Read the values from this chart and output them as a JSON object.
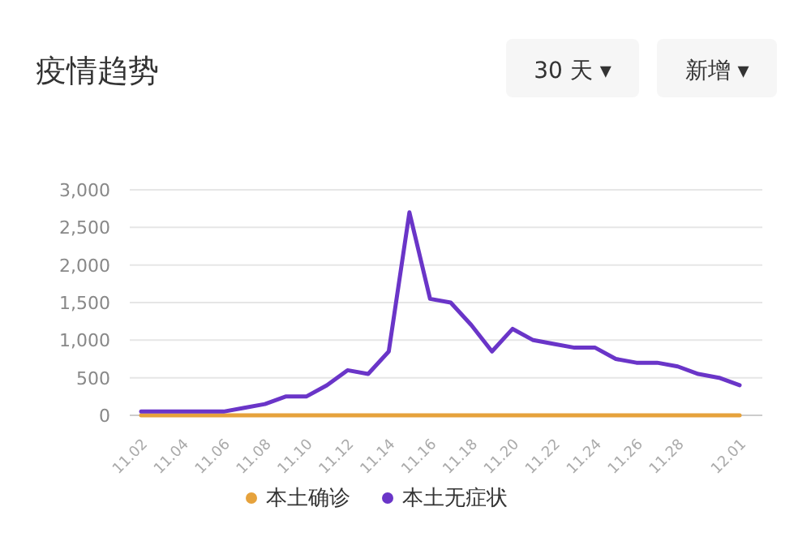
{
  "chart_data": {
    "type": "line",
    "title": "疫情趋势",
    "annotations": [
      "30 天 ▾",
      "新增 ▾"
    ],
    "categories": [
      "11.02",
      null,
      "11.04",
      null,
      "11.06",
      null,
      "11.08",
      null,
      "11.10",
      null,
      "11.12",
      null,
      "11.14",
      null,
      "11.16",
      null,
      "11.18",
      null,
      "11.20",
      null,
      "11.22",
      null,
      "11.24",
      null,
      "11.26",
      null,
      "11.28",
      null,
      null,
      "12.01"
    ],
    "series": [
      {
        "name": "本土确诊",
        "color": "#e6a23c",
        "values": [
          0,
          0,
          0,
          0,
          0,
          0,
          0,
          0,
          0,
          0,
          0,
          0,
          0,
          0,
          0,
          0,
          0,
          0,
          0,
          0,
          0,
          0,
          0,
          0,
          0,
          0,
          0,
          0,
          0,
          0
        ]
      },
      {
        "name": "本土无症状",
        "color": "#6a35c8",
        "values": [
          50,
          50,
          50,
          50,
          50,
          100,
          150,
          250,
          250,
          400,
          600,
          550,
          850,
          2700,
          1550,
          1500,
          1200,
          850,
          1150,
          1000,
          950,
          900,
          900,
          750,
          700,
          700,
          650,
          550,
          500,
          400
        ]
      }
    ],
    "ylim": [
      0,
      3000
    ],
    "yticks": [
      0,
      {
        "value": 500,
        "label": "500"
      },
      {
        "value": 1000,
        "label": "1,000"
      },
      {
        "value": 1500,
        "label": "1,500"
      },
      {
        "value": 2000,
        "label": "2,000"
      },
      {
        "value": 2500,
        "label": "2,500"
      },
      {
        "value": 3000,
        "label": "3,000"
      }
    ],
    "grid": "y",
    "legend": "bottom",
    "marker": "none",
    "line_style": "solid"
  }
}
